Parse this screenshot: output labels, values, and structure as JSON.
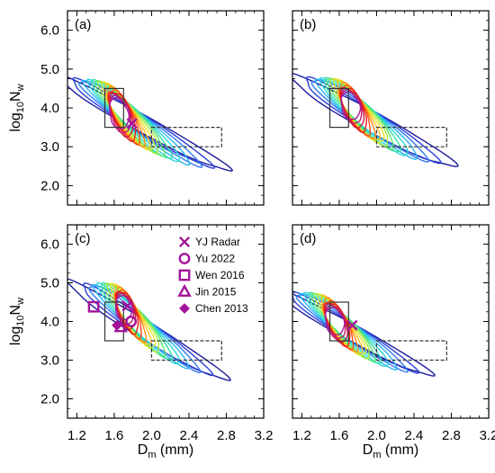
{
  "chart_data": [
    {
      "type": "contour",
      "panel": "(a)",
      "xlim": [
        1.1,
        3.2
      ],
      "ylim": [
        1.5,
        6.5
      ],
      "contour_levels": 16,
      "contour_colormap": "blue-cyan-green-yellow-orange-red",
      "contours": [
        {
          "cx": 1.65,
          "cy": 3.85,
          "a": 0.17,
          "b": 0.55,
          "tilt": -1.32
        },
        {
          "cx": 1.9,
          "cy": 3.6,
          "a": 1.05,
          "b": 0.52,
          "tilt": -0.5
        }
      ],
      "markers": [
        {
          "series": "YJ Radar",
          "x": 1.79,
          "y": 3.6
        }
      ],
      "boxes": [
        {
          "style": "solid",
          "x": [
            1.5,
            1.7
          ],
          "y": [
            3.5,
            4.5
          ]
        },
        {
          "style": "dashed",
          "x": [
            2.0,
            2.75
          ],
          "y": [
            3.0,
            3.5
          ]
        }
      ]
    },
    {
      "type": "contour",
      "panel": "(b)",
      "xlim": [
        1.1,
        3.2
      ],
      "ylim": [
        1.5,
        6.5
      ],
      "contour_levels": 16,
      "contour_colormap": "blue-cyan-green-yellow-orange-red",
      "contours": [
        {
          "cx": 1.72,
          "cy": 4.05,
          "a": 0.15,
          "b": 0.55,
          "tilt": -1.3
        },
        {
          "cx": 1.95,
          "cy": 3.65,
          "a": 1.0,
          "b": 0.62,
          "tilt": -0.5
        }
      ],
      "markers": [],
      "boxes": [
        {
          "style": "solid",
          "x": [
            1.5,
            1.7
          ],
          "y": [
            3.5,
            4.5
          ]
        },
        {
          "style": "dashed",
          "x": [
            2.0,
            2.75
          ],
          "y": [
            3.0,
            3.5
          ]
        }
      ]
    },
    {
      "type": "contour",
      "panel": "(c)",
      "xlim": [
        1.1,
        3.2
      ],
      "ylim": [
        1.5,
        6.5
      ],
      "contour_levels": 16,
      "contour_colormap": "blue-cyan-green-yellow-orange-red",
      "contours": [
        {
          "cx": 1.7,
          "cy": 4.35,
          "a": 0.13,
          "b": 0.5,
          "tilt": -1.38
        },
        {
          "cx": 1.95,
          "cy": 3.75,
          "a": 1.0,
          "b": 0.55,
          "tilt": -0.55
        }
      ],
      "markers": [
        {
          "series": "YJ Radar",
          "x": 1.74,
          "y": 4.4
        },
        {
          "series": "Yu 2022",
          "x": 1.78,
          "y": 4.0
        },
        {
          "series": "Wen 2016",
          "x": 1.38,
          "y": 4.38
        },
        {
          "series": "Jin 2015",
          "x": 1.67,
          "y": 3.85
        },
        {
          "series": "Chen 2013",
          "x": 1.63,
          "y": 3.9
        }
      ],
      "boxes": [
        {
          "style": "solid",
          "x": [
            1.5,
            1.7
          ],
          "y": [
            3.5,
            4.5
          ]
        },
        {
          "style": "dashed",
          "x": [
            2.0,
            2.75
          ],
          "y": [
            3.0,
            3.5
          ]
        }
      ]
    },
    {
      "type": "contour",
      "panel": "(d)",
      "xlim": [
        1.1,
        3.2
      ],
      "ylim": [
        1.5,
        6.5
      ],
      "contour_levels": 16,
      "contour_colormap": "blue-cyan-green-yellow-orange-red",
      "contours": [
        {
          "cx": 1.55,
          "cy": 4.0,
          "a": 0.15,
          "b": 0.55,
          "tilt": -1.3
        },
        {
          "cx": 1.75,
          "cy": 3.7,
          "a": 0.95,
          "b": 0.5,
          "tilt": -0.5
        }
      ],
      "markers": [
        {
          "series": "YJ Radar",
          "x": 1.74,
          "y": 3.9
        }
      ],
      "boxes": [
        {
          "style": "solid",
          "x": [
            1.5,
            1.7
          ],
          "y": [
            3.5,
            4.5
          ]
        },
        {
          "style": "dashed",
          "x": [
            2.0,
            2.75
          ],
          "y": [
            3.0,
            3.5
          ]
        }
      ]
    }
  ],
  "axes": {
    "x_ticks": [
      "1.2",
      "1.6",
      "2.0",
      "2.4",
      "2.8",
      "3.2"
    ],
    "x_tick_values": [
      1.2,
      1.6,
      2.0,
      2.4,
      2.8,
      3.2
    ],
    "y_ticks": [
      "2.0",
      "3.0",
      "4.0",
      "5.0",
      "6.0"
    ],
    "y_tick_values": [
      2.0,
      3.0,
      4.0,
      5.0,
      6.0
    ],
    "xlabel_main": "D",
    "xlabel_sub": "m",
    "xlabel_unit": " (mm)",
    "ylabel_main": "log",
    "ylabel_sub1": "10",
    "ylabel_mid": "N",
    "ylabel_sub2": "w"
  },
  "legend": {
    "placement": "panel (c) top-right",
    "entries": [
      {
        "label": "YJ Radar",
        "symbol": "x"
      },
      {
        "label": "Yu 2022",
        "symbol": "circle"
      },
      {
        "label": "Wen 2016",
        "symbol": "square"
      },
      {
        "label": "Jin 2015",
        "symbol": "triangle"
      },
      {
        "label": "Chen 2013",
        "symbol": "diamond"
      }
    ]
  },
  "colors": {
    "marker": "#a3139a",
    "box": "#333333",
    "contour_ramp": [
      "#1b1b9e",
      "#2a3fd6",
      "#2f7bf0",
      "#2bb6f3",
      "#29d8d8",
      "#33e0a4",
      "#5ee86a",
      "#a6ea3a",
      "#e6e62a",
      "#ffc21e",
      "#ff8a14",
      "#ff4e14",
      "#ea1a1a",
      "#cc1a3a",
      "#c2186b",
      "#b0149a"
    ]
  }
}
